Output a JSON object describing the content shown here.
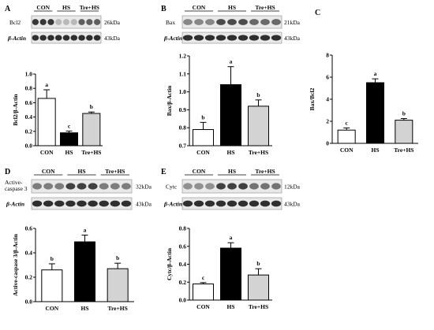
{
  "colors": {
    "CON": "#ffffff",
    "HS": "#000000",
    "Tre+HS": "#d3d3d3",
    "axis": "#000000",
    "blot_band": "#3c3c3c"
  },
  "common": {
    "actin_label": "β-Actin",
    "actin_kda": "43kDa"
  },
  "chart_data": [
    {
      "type": "bar",
      "panel": "A",
      "categories": [
        "CON",
        "HS",
        "Tre+HS"
      ],
      "values": [
        0.66,
        0.18,
        0.45
      ],
      "errors": [
        0.12,
        0.025,
        0.02
      ],
      "letters": [
        "a",
        "c",
        "b"
      ],
      "ylabel": "Bcl2/β-Actin",
      "ylim": [
        0,
        1.0
      ],
      "yticks": [
        "0.0",
        "0.2",
        "0.4",
        "0.6",
        "0.8",
        "1.0"
      ],
      "blot": {
        "protein": "Bcl2",
        "kda": "26kDa",
        "group_labels": [
          "CON",
          "HS",
          "Tre+HS"
        ],
        "intensity": [
          0.9,
          0.9,
          0.9,
          0.25,
          0.25,
          0.25,
          0.7,
          0.7,
          0.7
        ]
      }
    },
    {
      "type": "bar",
      "panel": "B",
      "categories": [
        "CON",
        "HS",
        "Tre+HS"
      ],
      "values": [
        0.79,
        1.04,
        0.92
      ],
      "errors": [
        0.04,
        0.1,
        0.035
      ],
      "letters": [
        "b",
        "a",
        "b"
      ],
      "ylabel": "Bax/β-Actin",
      "ylim": [
        0.7,
        1.2
      ],
      "yticks": [
        "0.7",
        "0.8",
        "0.9",
        "1.0",
        "1.1",
        "1.2"
      ],
      "blot": {
        "protein": "Bax",
        "kda": "21kDa",
        "group_labels": [
          "CON",
          "HS",
          "Tre+HS"
        ],
        "intensity": [
          0.5,
          0.5,
          0.5,
          0.8,
          0.8,
          0.8,
          0.65,
          0.65,
          0.65
        ]
      }
    },
    {
      "type": "bar",
      "panel": "C",
      "categories": [
        "CON",
        "HS",
        "Tre+HS"
      ],
      "values": [
        1.2,
        5.5,
        2.1
      ],
      "errors": [
        0.2,
        0.35,
        0.15
      ],
      "letters": [
        "c",
        "a",
        "b"
      ],
      "ylabel": "Bax/Bcl2",
      "ylim": [
        0,
        8
      ],
      "yticks": [
        "0",
        "2",
        "4",
        "6",
        "8"
      ]
    },
    {
      "type": "bar",
      "panel": "D",
      "categories": [
        "CON",
        "HS",
        "Tre+HS"
      ],
      "values": [
        0.26,
        0.49,
        0.27
      ],
      "errors": [
        0.05,
        0.055,
        0.045
      ],
      "letters": [
        "b",
        "a",
        "b"
      ],
      "ylabel": "Active-caspase 3/β-Actin",
      "ylim": [
        0,
        0.6
      ],
      "yticks": [
        "0.0",
        "0.2",
        "0.4",
        "0.6"
      ],
      "blot": {
        "protein": "Active-caspase 3",
        "kda": "32kDa",
        "group_labels": [
          "CON",
          "HS",
          "Tre+HS"
        ],
        "intensity": [
          0.55,
          0.55,
          0.55,
          0.85,
          0.85,
          0.85,
          0.55,
          0.55,
          0.55
        ]
      }
    },
    {
      "type": "bar",
      "panel": "E",
      "categories": [
        "CON",
        "HS",
        "Tre+HS"
      ],
      "values": [
        0.18,
        0.58,
        0.28
      ],
      "errors": [
        0.015,
        0.06,
        0.07
      ],
      "letters": [
        "c",
        "a",
        "b"
      ],
      "ylabel": "Cytc/β-Actin",
      "ylim": [
        0,
        0.8
      ],
      "yticks": [
        "0.0",
        "0.2",
        "0.4",
        "0.6",
        "0.8"
      ],
      "blot": {
        "protein": "Cytc",
        "kda": "12kDa",
        "group_labels": [
          "CON",
          "HS",
          "Tre+HS"
        ],
        "intensity": [
          0.45,
          0.45,
          0.45,
          0.85,
          0.85,
          0.85,
          0.6,
          0.6,
          0.6
        ]
      }
    }
  ]
}
